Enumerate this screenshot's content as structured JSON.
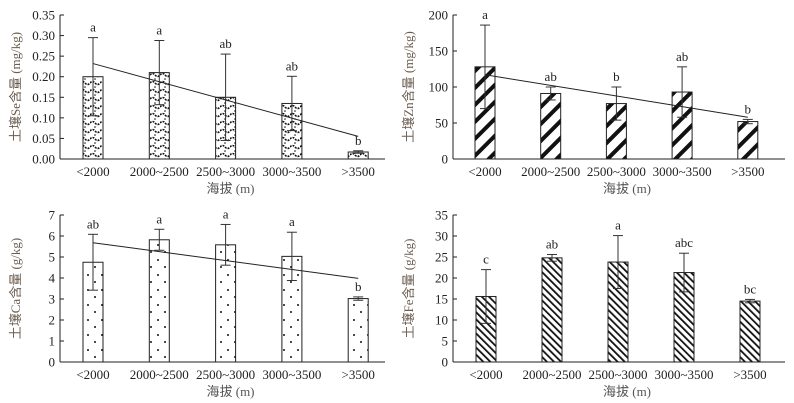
{
  "chart_data": [
    {
      "type": "bar",
      "id": "se",
      "title": "",
      "ylabel": "土壤Se含量 (mg/kg)",
      "xlabel": "海拔 (m)",
      "categories": [
        "<2000",
        "2000~2500",
        "2500~3000",
        "3000~3500",
        ">3500"
      ],
      "values": [
        0.2,
        0.21,
        0.15,
        0.135,
        0.017
      ],
      "error_upper": [
        0.295,
        0.288,
        0.255,
        0.201,
        0.02
      ],
      "significance": [
        "a",
        "a",
        "ab",
        "ab",
        "b"
      ],
      "trendline": [
        0.232,
        0.055
      ],
      "ylim": [
        0,
        0.35
      ],
      "yticks": [
        "0.00",
        "0.05",
        "0.10",
        "0.15",
        "0.20",
        "0.25",
        "0.30",
        "0.35"
      ],
      "pattern": "wave"
    },
    {
      "type": "bar",
      "id": "zn",
      "title": "",
      "ylabel": "土壤Zn含量 (mg/kg)",
      "xlabel": "海拔 (m)",
      "categories": [
        "<2000",
        "2000~2500",
        "2500~3000",
        "3000~3500",
        ">3500"
      ],
      "values": [
        128,
        91,
        77,
        93,
        52
      ],
      "error_upper": [
        186,
        100,
        100,
        128,
        55
      ],
      "significance": [
        "a",
        "ab",
        "b",
        "ab",
        "b"
      ],
      "trendline": [
        117,
        58
      ],
      "ylim": [
        0,
        200
      ],
      "yticks": [
        "0",
        "50",
        "100",
        "150",
        "200"
      ],
      "pattern": "thick-diagonal"
    },
    {
      "type": "bar",
      "id": "ca",
      "title": "",
      "ylabel": "土壤Ca含量 (g/kg)",
      "xlabel": "海拔 (m)",
      "categories": [
        "<2000",
        "2000~2500",
        "2500~3000",
        "3000~3500",
        ">3500"
      ],
      "values": [
        4.75,
        5.82,
        5.58,
        5.03,
        3.02
      ],
      "error_upper": [
        6.08,
        6.32,
        6.55,
        6.18,
        3.1
      ],
      "significance": [
        "ab",
        "a",
        "a",
        "a",
        "b"
      ],
      "trendline": [
        5.68,
        3.98
      ],
      "ylim": [
        0,
        7
      ],
      "yticks": [
        "0",
        "1",
        "2",
        "3",
        "4",
        "5",
        "6",
        "7"
      ],
      "pattern": "dots"
    },
    {
      "type": "bar",
      "id": "fe",
      "title": "",
      "ylabel": "土壤Fe含量 (g/kg)",
      "xlabel": "海拔 (m)",
      "categories": [
        "<2000",
        "2000~2500",
        "2500~3000",
        "3000~3500",
        ">3500"
      ],
      "values": [
        15.6,
        24.8,
        23.8,
        21.3,
        14.5
      ],
      "error_upper": [
        22.0,
        25.6,
        30.1,
        25.9,
        14.9
      ],
      "significance": [
        "c",
        "ab",
        "a",
        "abc",
        "bc"
      ],
      "trendline": null,
      "ylim": [
        0,
        35
      ],
      "yticks": [
        "0",
        "5",
        "10",
        "15",
        "20",
        "25",
        "30",
        "35"
      ],
      "pattern": "thin-backslash"
    }
  ]
}
